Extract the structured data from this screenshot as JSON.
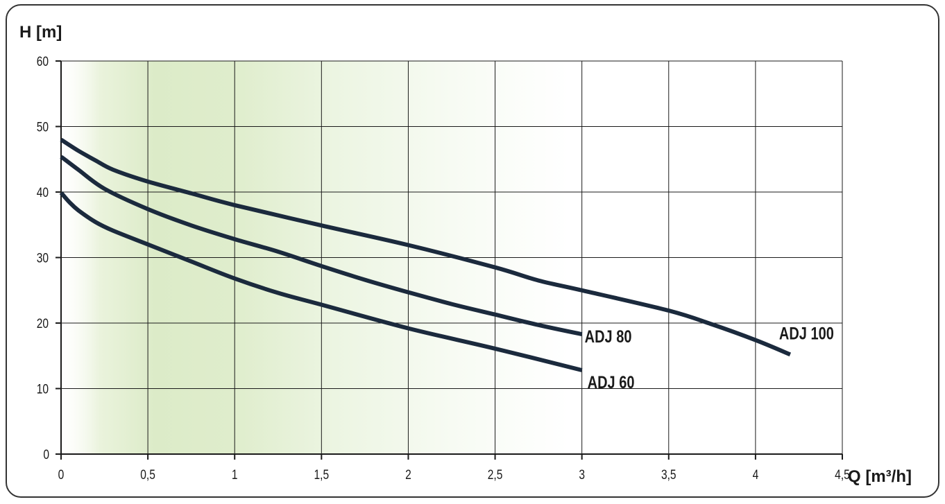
{
  "chart_data": {
    "type": "line",
    "xlabel": "Q [m³/h]",
    "ylabel": "H [m]",
    "xlim": [
      0,
      4.5
    ],
    "ylim": [
      0,
      60
    ],
    "x_ticks": [
      0,
      0.5,
      1,
      1.5,
      2,
      2.5,
      3,
      3.5,
      4,
      4.5
    ],
    "x_tick_labels": [
      "0",
      "0,5",
      "1",
      "1,5",
      "2",
      "2,5",
      "3",
      "3,5",
      "4",
      "4,5"
    ],
    "y_ticks": [
      0,
      10,
      20,
      30,
      40,
      50,
      60
    ],
    "y_tick_labels": [
      "0",
      "10",
      "20",
      "30",
      "40",
      "50",
      "60"
    ],
    "grid": true,
    "legend": "inline labels at line ends",
    "colors": {
      "line": "#1b2a3d",
      "grid": "#1a1a1a",
      "shade": "#dcebc8",
      "background": "#ffffff"
    },
    "series": [
      {
        "name": "ADJ 100",
        "x": [
          0,
          0.1,
          0.2,
          0.3,
          0.5,
          0.75,
          1,
          1.5,
          2,
          2.5,
          2.75,
          3,
          3.5,
          3.75,
          4,
          4.2
        ],
        "y": [
          48,
          46.3,
          44.8,
          43.4,
          41.6,
          39.8,
          38,
          34.9,
          31.9,
          28.5,
          26.5,
          25,
          21.9,
          19.8,
          17.4,
          15.2
        ]
      },
      {
        "name": "ADJ 80",
        "x": [
          0,
          0.1,
          0.25,
          0.5,
          0.75,
          1,
          1.25,
          1.5,
          1.75,
          2,
          2.25,
          2.5,
          2.75,
          3
        ],
        "y": [
          45.4,
          43.4,
          40.5,
          37.4,
          34.9,
          32.8,
          30.9,
          28.7,
          26.6,
          24.7,
          22.9,
          21.3,
          19.7,
          18.3
        ]
      },
      {
        "name": "ADJ 60",
        "x": [
          0,
          0.05,
          0.1,
          0.2,
          0.3,
          0.5,
          0.75,
          1,
          1.25,
          1.5,
          2,
          2.5,
          3
        ],
        "y": [
          39.9,
          38.4,
          37.2,
          35.4,
          34.1,
          32,
          29.4,
          26.8,
          24.6,
          22.8,
          19.2,
          16.1,
          12.8
        ]
      }
    ]
  }
}
